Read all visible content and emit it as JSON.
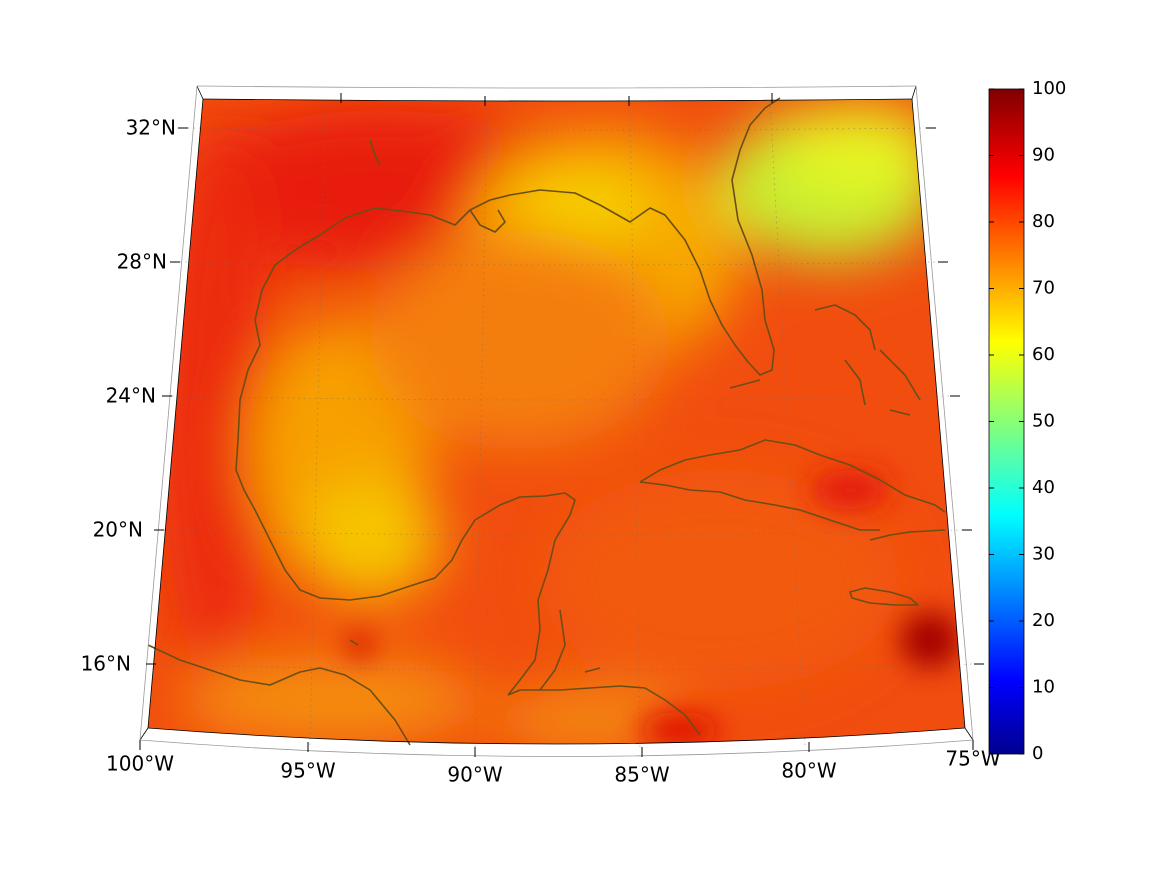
{
  "map": {
    "projection": "lambert-conic",
    "extent": {
      "lon_min": -100,
      "lon_max": -75,
      "lat_min": 14,
      "lat_max": 33
    },
    "lat_ticks": [
      {
        "value": 32,
        "label": "32°N"
      },
      {
        "value": 28,
        "label": "28°N"
      },
      {
        "value": 24,
        "label": "24°N"
      },
      {
        "value": 20,
        "label": "20°N"
      },
      {
        "value": 16,
        "label": "16°N"
      }
    ],
    "lon_ticks": [
      {
        "value": -100,
        "label": "100°W"
      },
      {
        "value": -95,
        "label": "95°W"
      },
      {
        "value": -90,
        "label": "90°W"
      },
      {
        "value": -85,
        "label": "85°W"
      },
      {
        "value": -80,
        "label": "80°W"
      },
      {
        "value": -75,
        "label": "75°W"
      }
    ],
    "grid": "dotted",
    "coastline_color": "#6b4e16",
    "field": {
      "colormap": "jet",
      "typical_value": 80,
      "regions": [
        {
          "name": "northwest Gulf coast",
          "value": 88
        },
        {
          "name": "Florida panhandle / north Florida",
          "value": 68
        },
        {
          "name": "western Atlantic off Georgia/Carolina",
          "value": 58
        },
        {
          "name": "western Gulf of Mexico",
          "value": 72
        },
        {
          "name": "Bay of Campeche",
          "value": 66
        },
        {
          "name": "central Gulf of Mexico",
          "value": 78
        },
        {
          "name": "Caribbean south of Cuba",
          "value": 82
        },
        {
          "name": "south of Hispaniola",
          "value": 95
        },
        {
          "name": "Honduras coast",
          "value": 90
        }
      ]
    }
  },
  "colorbar": {
    "range": [
      0,
      100
    ],
    "ticks": [
      {
        "value": 100,
        "label": "100"
      },
      {
        "value": 90,
        "label": "90"
      },
      {
        "value": 80,
        "label": "80"
      },
      {
        "value": 70,
        "label": "70"
      },
      {
        "value": 60,
        "label": "60"
      },
      {
        "value": 50,
        "label": "50"
      },
      {
        "value": 40,
        "label": "40"
      },
      {
        "value": 30,
        "label": "30"
      },
      {
        "value": 20,
        "label": "20"
      },
      {
        "value": 10,
        "label": "10"
      },
      {
        "value": 0,
        "label": "0"
      }
    ],
    "colormap": "jet"
  }
}
